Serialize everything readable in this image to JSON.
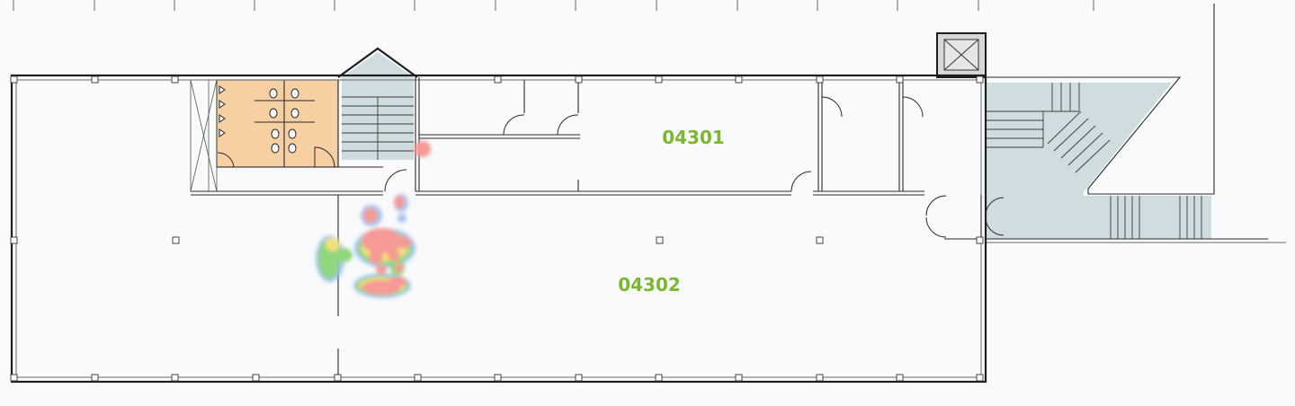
{
  "rooms": [
    {
      "id": "04301"
    },
    {
      "id": "04302"
    }
  ],
  "colors": {
    "background": "#f8fafc",
    "room_label": "#7cb82f",
    "restroom_fill": "#f6cfa3",
    "stair_fill": "#cfdde0",
    "heat_high": "#f59a94",
    "heat_mid": "#f2e27a",
    "heat_low": "#8fd67d",
    "heat_edge": "#8fb8e8"
  },
  "heatmap": {
    "legend_shown": false,
    "levels": [
      "high",
      "mid",
      "low",
      "edge"
    ]
  }
}
